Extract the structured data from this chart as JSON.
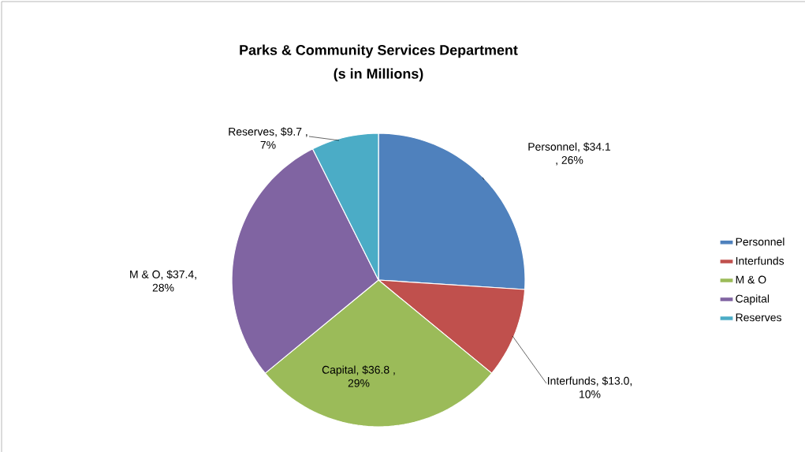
{
  "chart_data": {
    "type": "pie",
    "title": "Parks & Community Services Department",
    "subtitle": "(s in Millions)",
    "categories": [
      "Personnel",
      "Interfunds",
      "M & O",
      "Capital",
      "Reserves"
    ],
    "values": [
      34.1,
      13.0,
      36.8,
      37.4,
      9.7
    ],
    "colors": [
      "#4f81bd",
      "#c0504d",
      "#9bbb59",
      "#8064a2",
      "#4bacc6"
    ],
    "value_labels": [
      "Personnel, $34.1 , 26%",
      "Interfunds, $13.0,  10%",
      "Capital, $36.8 , 29%",
      "M & O, $37.4, 28%",
      "Reserves,  $9.7 , 7%"
    ],
    "legend": "right"
  }
}
